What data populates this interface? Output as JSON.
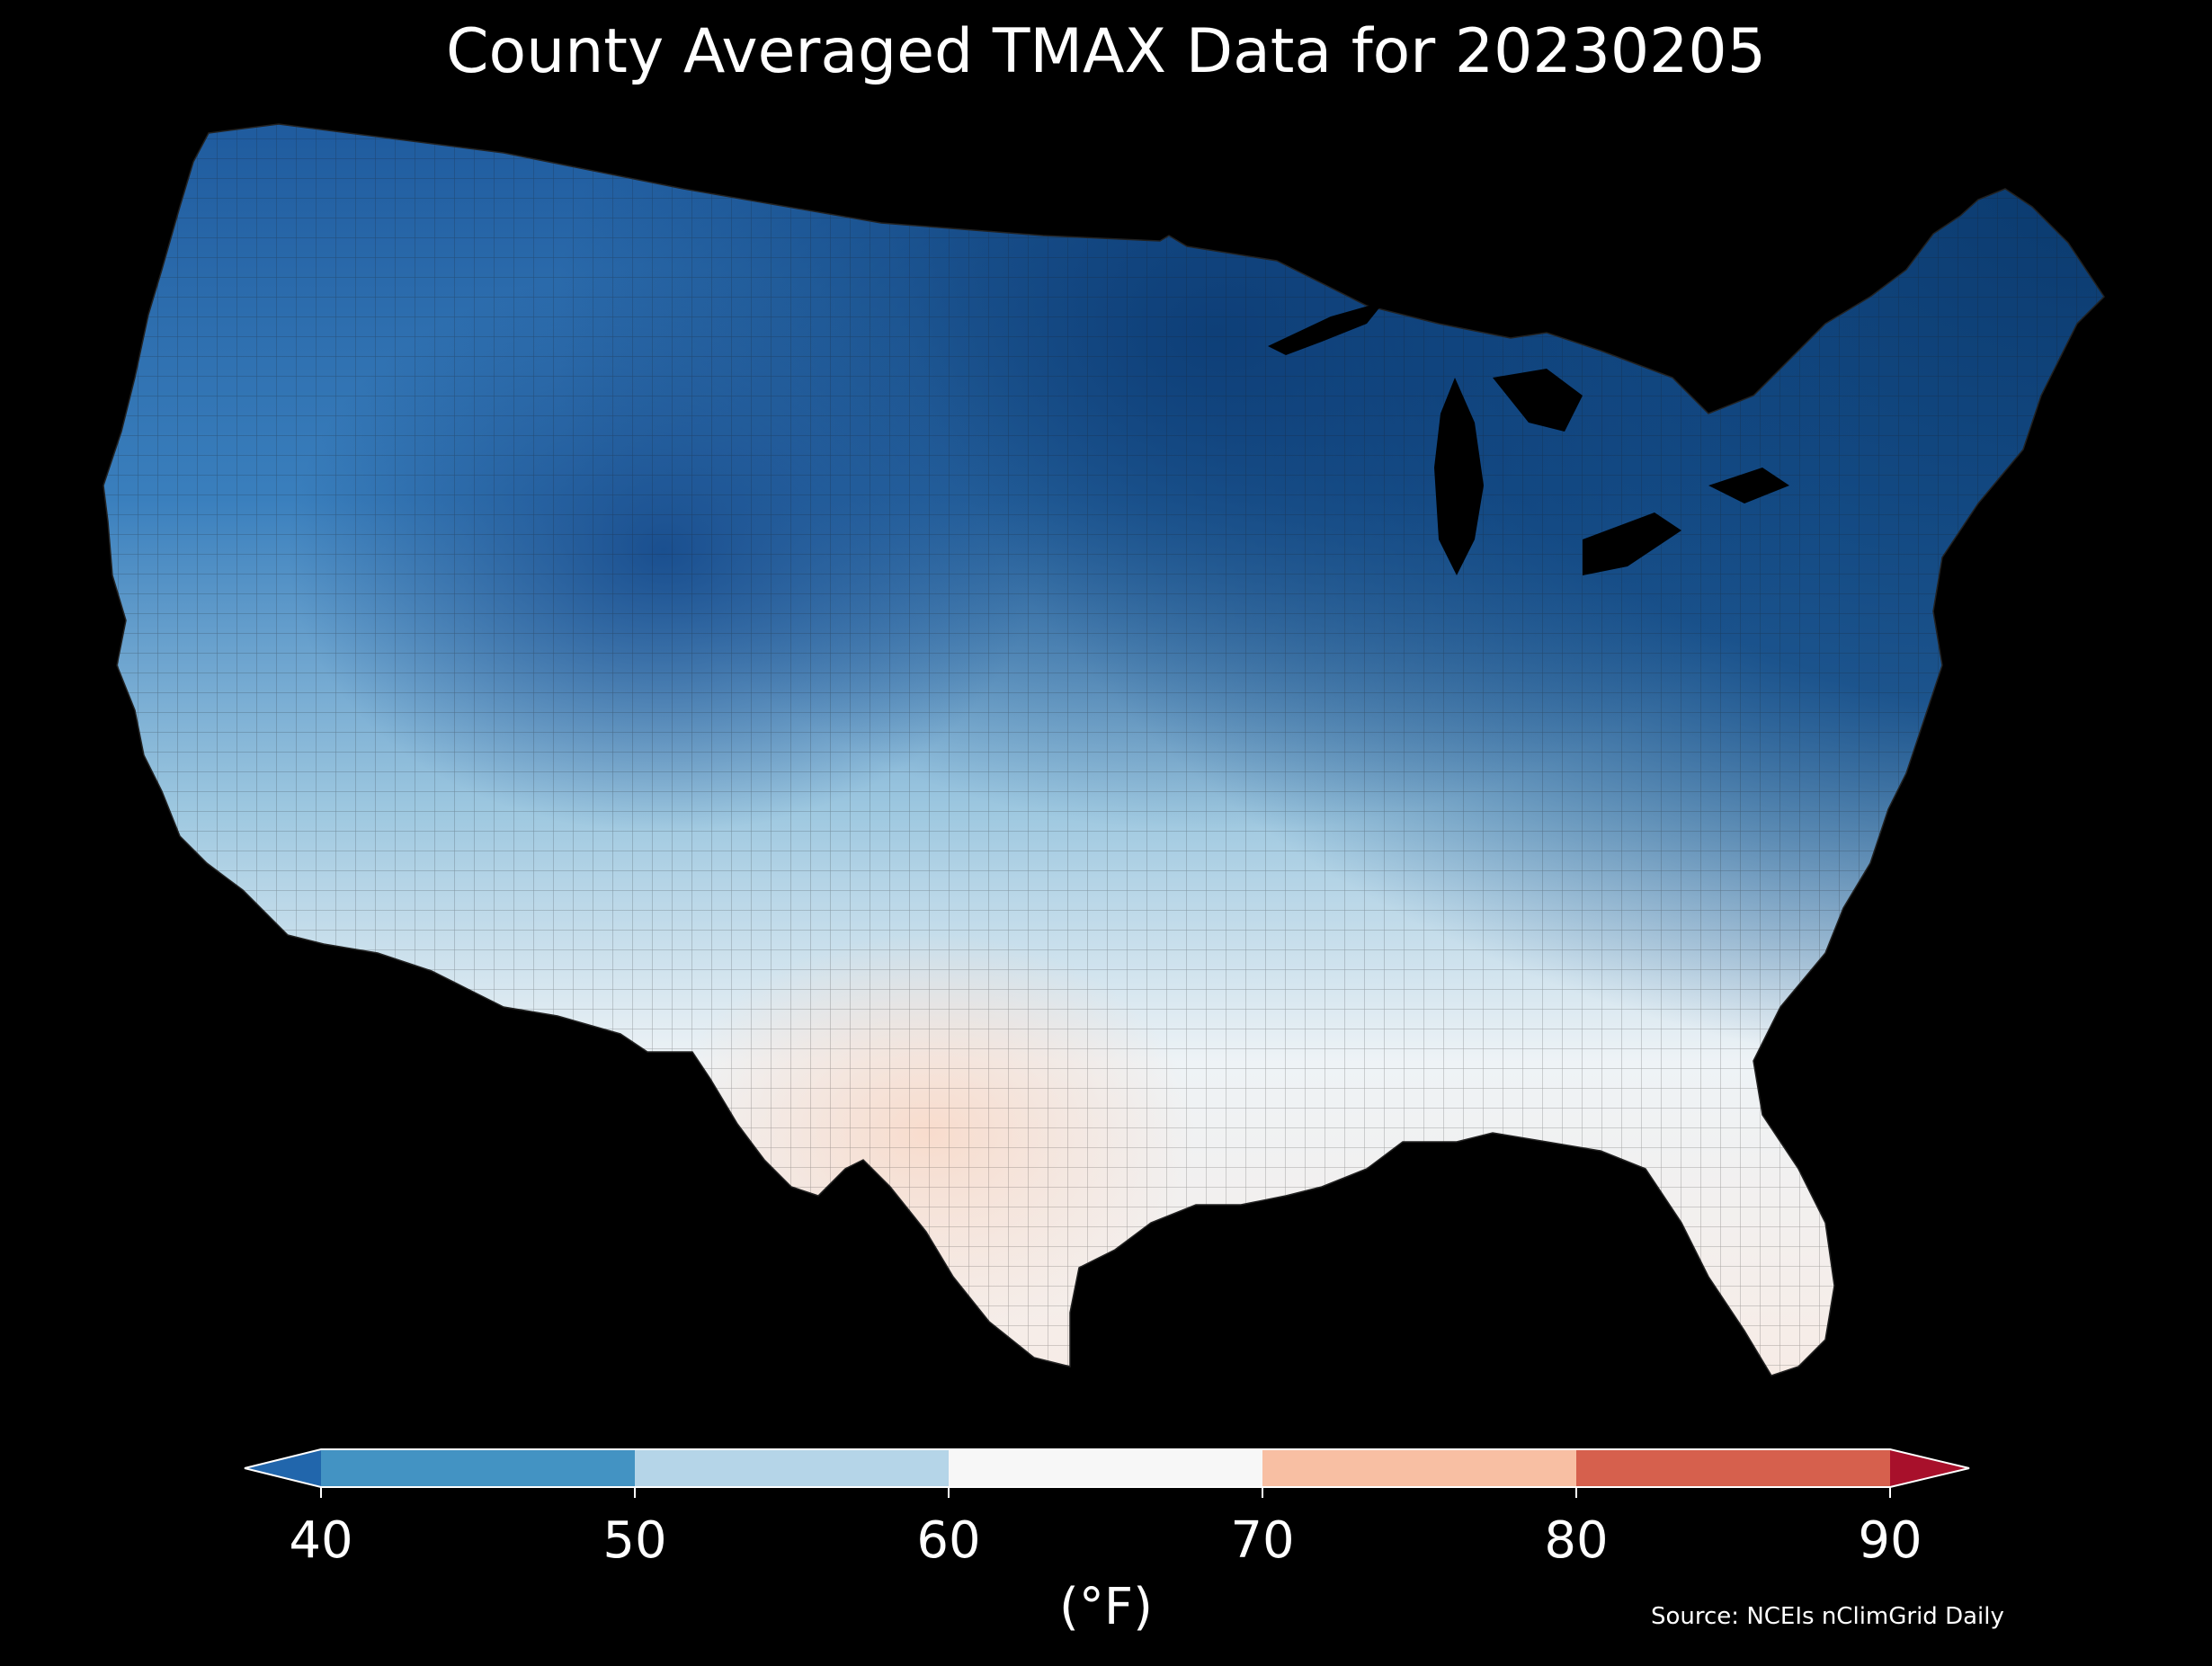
{
  "title": "County Averaged TMAX Data for 20230205",
  "colorbar": {
    "units": "(°F)",
    "ticks": [
      "40",
      "50",
      "60",
      "70",
      "80",
      "90"
    ],
    "bins": [
      {
        "range": "<40",
        "color": "#2166ac"
      },
      {
        "range": "40-50",
        "color": "#4393c3"
      },
      {
        "range": "50-60",
        "color": "#b5d5e8"
      },
      {
        "range": "60-70",
        "color": "#f7f7f7"
      },
      {
        "range": "70-80",
        "color": "#f8bfa3"
      },
      {
        "range": "80-90",
        "color": "#d6604d"
      },
      {
        "range": ">90",
        "color": "#a8102b"
      }
    ]
  },
  "source": "Source: NCEIs nClimGrid Daily",
  "background": "#000000"
}
